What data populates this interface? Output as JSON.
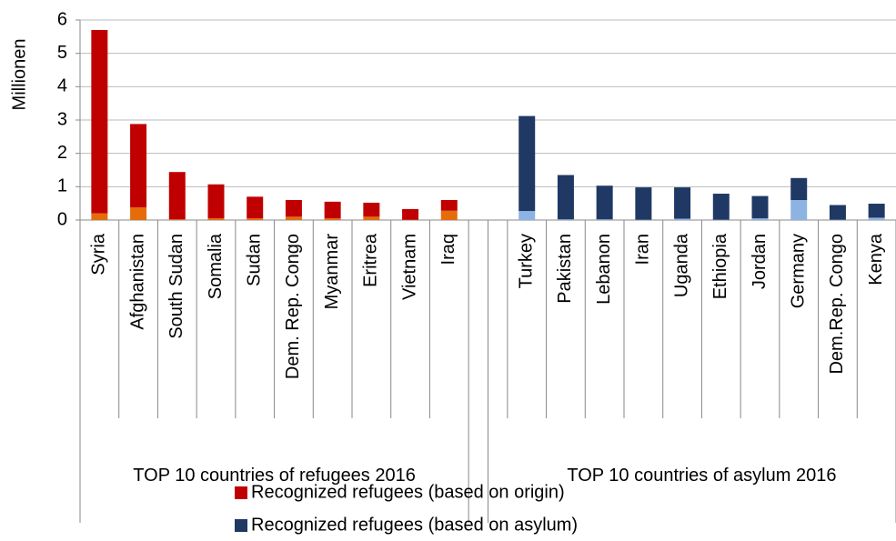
{
  "chart_data": {
    "type": "bar",
    "stacked": true,
    "y_label": "Millionen",
    "categories": [
      "Syria",
      "Afghanistan",
      "South Sudan",
      "Somalia",
      "Sudan",
      "Dem. Rep. Congo",
      "Myanmar",
      "Eritrea",
      "Vietnam",
      "Iraq",
      null,
      "Turkey",
      "Pakistan",
      "Lebanon",
      "Iran",
      "Uganda",
      "Ethiopia",
      "Jordan",
      "Germany",
      "Dem.Rep. Congo",
      "Kenya"
    ],
    "groups": [
      {
        "label": "TOP 10 countries of refugees 2016",
        "start": 0,
        "end": 9
      },
      {
        "label": "TOP 10 countries of asylum 2016",
        "start": 11,
        "end": 20
      }
    ],
    "series": [
      {
        "color": "#e46c0a",
        "values": [
          0.2,
          0.38,
          0.02,
          0.05,
          0.05,
          0.1,
          0.05,
          0.1,
          0.01,
          0.28,
          null,
          null,
          null,
          null,
          null,
          null,
          null,
          null,
          null,
          null,
          null
        ]
      },
      {
        "name": "Recognized refugees (based on origin)",
        "color": "#c00000",
        "values": [
          5.5,
          2.5,
          1.42,
          1.02,
          0.65,
          0.5,
          0.5,
          0.42,
          0.32,
          0.32,
          null,
          null,
          null,
          null,
          null,
          null,
          null,
          null,
          null,
          null,
          null
        ]
      },
      {
        "color": "#8db3e2",
        "values": [
          null,
          null,
          null,
          null,
          null,
          null,
          null,
          null,
          null,
          null,
          null,
          0.27,
          0.02,
          0.02,
          0.01,
          0.04,
          0.01,
          0.05,
          0.6,
          0.01,
          0.07
        ]
      },
      {
        "name": "Recognized refugees (based on asylum)",
        "color": "#1f3864",
        "values": [
          null,
          null,
          null,
          null,
          null,
          null,
          null,
          null,
          null,
          null,
          null,
          2.85,
          1.33,
          1.01,
          0.97,
          0.94,
          0.78,
          0.67,
          0.66,
          0.44,
          0.42
        ]
      }
    ],
    "ylim": [
      0,
      6
    ],
    "yticks": [
      0,
      1,
      2,
      3,
      4,
      5,
      6
    ],
    "grid": true
  }
}
